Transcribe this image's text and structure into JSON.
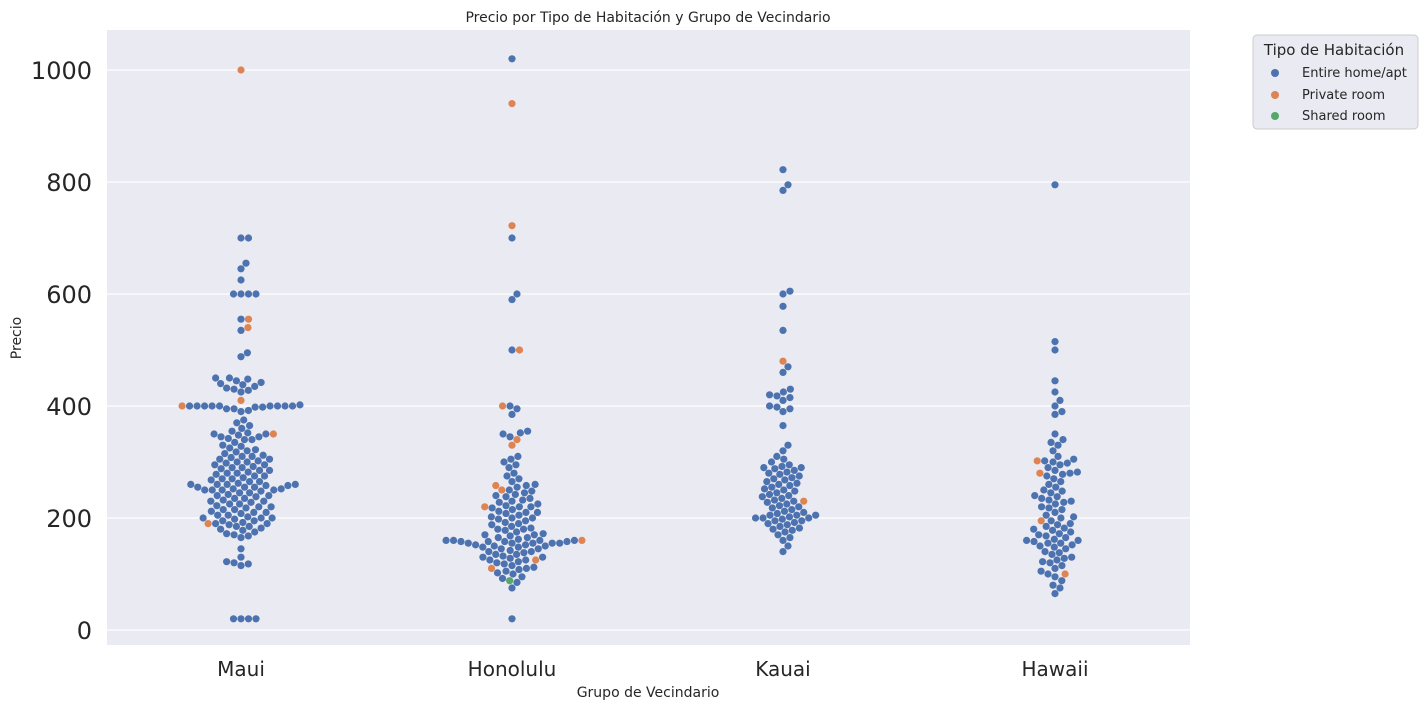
{
  "chart_data": {
    "type": "scatter",
    "subtype": "swarm",
    "title": "Precio por Tipo de Habitación y Grupo de Vecindario",
    "xlabel": "Grupo de Vecindario",
    "ylabel": "Precio",
    "categories": [
      "Maui",
      "Honolulu",
      "Kauai",
      "Hawaii"
    ],
    "yticks": [
      "0",
      "200",
      "400",
      "600",
      "800",
      "1000"
    ],
    "ylim": [
      -30,
      1070
    ],
    "grid": true,
    "legend": {
      "title": "Tipo de Habitación",
      "placement": "outside-top-right",
      "entries": [
        "Entire home/apt",
        "Private room",
        "Shared room"
      ]
    },
    "colors": {
      "Entire home/apt": "#4c72b0",
      "Private room": "#dd8452",
      "Shared room": "#55a868",
      "background": "#eaeaf2"
    },
    "series": [
      {
        "name": "Entire home/apt",
        "points": {
          "Maui": [
            20,
            20,
            20,
            20,
            115,
            118,
            120,
            122,
            130,
            145,
            165,
            168,
            170,
            172,
            175,
            178,
            180,
            182,
            185,
            185,
            188,
            190,
            190,
            192,
            195,
            195,
            198,
            200,
            200,
            200,
            202,
            205,
            205,
            208,
            210,
            210,
            212,
            215,
            215,
            218,
            220,
            220,
            222,
            225,
            225,
            228,
            230,
            230,
            232,
            235,
            235,
            238,
            240,
            240,
            242,
            245,
            245,
            248,
            250,
            250,
            250,
            250,
            252,
            252,
            255,
            255,
            255,
            258,
            258,
            260,
            260,
            260,
            260,
            262,
            265,
            265,
            268,
            270,
            270,
            272,
            275,
            275,
            278,
            280,
            280,
            282,
            285,
            285,
            288,
            290,
            290,
            292,
            295,
            295,
            298,
            300,
            300,
            302,
            305,
            305,
            308,
            310,
            310,
            312,
            315,
            318,
            320,
            322,
            325,
            328,
            330,
            335,
            340,
            340,
            342,
            345,
            345,
            348,
            350,
            350,
            352,
            355,
            360,
            365,
            370,
            375,
            390,
            392,
            395,
            395,
            398,
            398,
            400,
            400,
            400,
            400,
            400,
            400,
            400,
            400,
            400,
            402,
            425,
            428,
            430,
            432,
            435,
            438,
            440,
            442,
            445,
            448,
            450,
            450,
            488,
            495,
            535,
            555,
            600,
            600,
            600,
            600,
            625,
            645,
            655,
            700,
            700
          ],
          "Honolulu": [
            20,
            75,
            85,
            92,
            95,
            100,
            102,
            105,
            108,
            110,
            112,
            115,
            118,
            120,
            122,
            125,
            125,
            128,
            130,
            130,
            132,
            135,
            135,
            138,
            140,
            140,
            142,
            145,
            145,
            148,
            148,
            150,
            150,
            152,
            152,
            155,
            155,
            155,
            155,
            155,
            158,
            158,
            158,
            158,
            160,
            160,
            160,
            160,
            162,
            165,
            165,
            168,
            170,
            170,
            172,
            175,
            178,
            180,
            180,
            182,
            185,
            188,
            190,
            192,
            195,
            198,
            200,
            200,
            202,
            205,
            208,
            210,
            210,
            212,
            215,
            218,
            220,
            220,
            222,
            225,
            228,
            230,
            232,
            235,
            238,
            240,
            242,
            245,
            248,
            250,
            255,
            258,
            260,
            265,
            270,
            275,
            280,
            290,
            295,
            300,
            305,
            310,
            345,
            350,
            352,
            355,
            385,
            395,
            400,
            500,
            590,
            600,
            700,
            1020
          ],
          "Kauai": [
            140,
            150,
            160,
            165,
            170,
            175,
            178,
            180,
            182,
            185,
            188,
            190,
            192,
            195,
            195,
            198,
            200,
            200,
            200,
            202,
            205,
            205,
            205,
            208,
            210,
            212,
            215,
            218,
            220,
            222,
            225,
            228,
            230,
            232,
            235,
            238,
            240,
            242,
            245,
            248,
            250,
            252,
            255,
            258,
            260,
            262,
            265,
            268,
            270,
            272,
            275,
            278,
            280,
            282,
            285,
            288,
            290,
            290,
            292,
            295,
            300,
            305,
            310,
            320,
            330,
            365,
            390,
            395,
            398,
            400,
            410,
            415,
            418,
            420,
            425,
            430,
            460,
            470,
            535,
            578,
            600,
            605,
            785,
            795,
            822
          ],
          "Hawaii": [
            65,
            75,
            80,
            88,
            95,
            100,
            105,
            110,
            115,
            120,
            122,
            125,
            128,
            130,
            135,
            138,
            140,
            145,
            148,
            150,
            152,
            155,
            155,
            158,
            160,
            160,
            162,
            165,
            168,
            170,
            172,
            175,
            178,
            180,
            182,
            185,
            188,
            190,
            195,
            200,
            202,
            205,
            210,
            215,
            218,
            220,
            225,
            228,
            230,
            232,
            235,
            238,
            240,
            245,
            248,
            250,
            255,
            260,
            265,
            270,
            275,
            278,
            280,
            282,
            285,
            290,
            295,
            298,
            300,
            302,
            305,
            310,
            320,
            330,
            335,
            340,
            350,
            385,
            390,
            400,
            410,
            425,
            445,
            500,
            515,
            795
          ]
        }
      },
      {
        "name": "Private room",
        "points": {
          "Maui": [
            190,
            350,
            400,
            410,
            540,
            555,
            1000
          ],
          "Honolulu": [
            110,
            125,
            160,
            220,
            250,
            258,
            330,
            340,
            400,
            500,
            722,
            940
          ],
          "Kauai": [
            230,
            480
          ],
          "Hawaii": [
            100,
            195,
            280,
            302
          ]
        }
      },
      {
        "name": "Shared room",
        "points": {
          "Maui": [],
          "Honolulu": [
            88
          ],
          "Kauai": [],
          "Hawaii": []
        }
      }
    ]
  }
}
